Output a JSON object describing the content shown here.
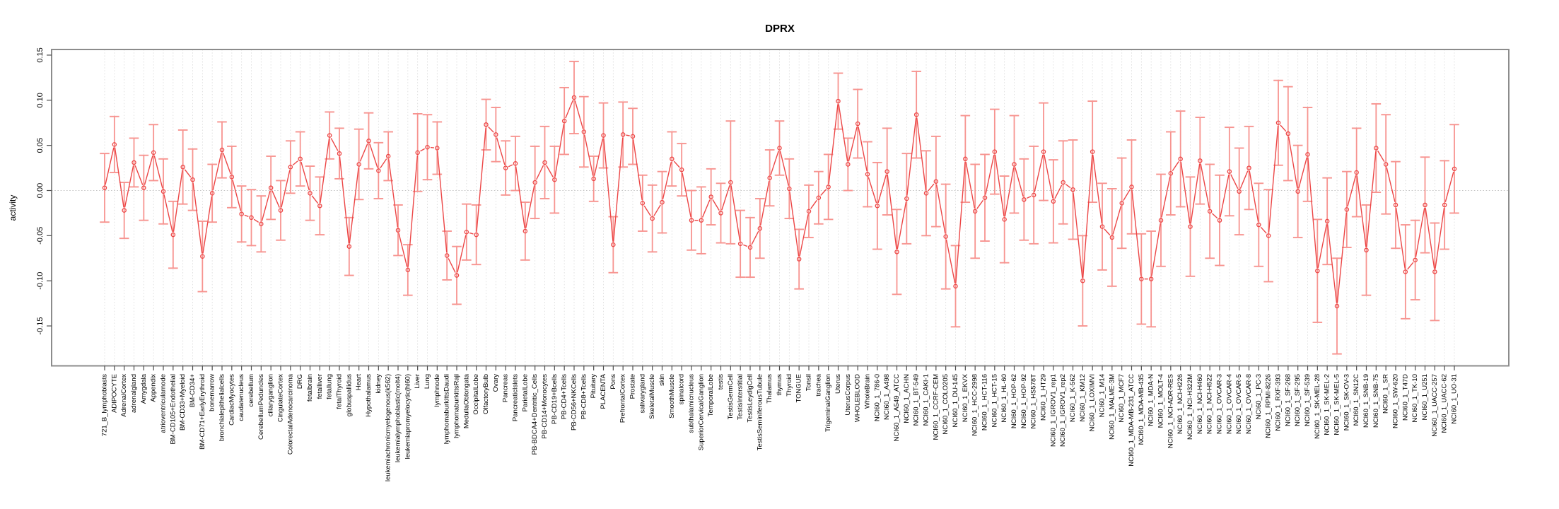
{
  "chart_data": {
    "type": "line",
    "title": "DPRX",
    "xlabel": "",
    "ylabel": "activity",
    "ylim": [
      -0.194,
      0.156
    ],
    "yticks": [
      0.15,
      0.1,
      0.05,
      0.0,
      -0.05,
      -0.1,
      -0.15
    ],
    "ytick_labels": [
      "0.15",
      "0.10",
      "0.05",
      "0.00",
      "-0.05",
      "-0.10",
      "-0.15"
    ],
    "grid": "vertical dotted gridline at every category; horizontal dotted line at zero",
    "legend": "none",
    "marker": "open-circle",
    "error_bars": true,
    "colors": {
      "line": "#ec4646",
      "point": "#ec4646",
      "error_bar": "#f79490",
      "grid": "#d9d9d9",
      "zero_line": "#c4c4c4",
      "frame": "#8c8c8c",
      "tick": "#4d4d4d",
      "text": "#000000"
    },
    "categories": [
      "721_B_lymphoblasts",
      "ADIPOCYTE",
      "AdrenalCortex",
      "adrenalgland",
      "Amygdala",
      "Appendix",
      "atrioventricularnode",
      "BM-CD105+Endothelial",
      "BM-CD33+Myeloid",
      "BM-CD34+",
      "BM-CD71+EarlyErythroid",
      "bonemarrow",
      "bronchialepithelialcells",
      "CardiacMyocytes",
      "caudatenucleus",
      "cerebellum",
      "CerebellumPeduncles",
      "ciliaryganglion",
      "CingulateCortex",
      "ColorectalAdenocarcinoma",
      "DRG",
      "fetalbrain",
      "fetalliver",
      "fetallung",
      "fetalThyroid",
      "globuspallidus",
      "Heart",
      "Hypothalamus",
      "kidney",
      "leukemiachronicmyelogenous(k562)",
      "leukemialymphoblastic(molt4)",
      "leukemiapromyelocytic(hl60)",
      "Liver",
      "Lung",
      "lymphnode",
      "lymphomaburkittsDaudi",
      "lymphomaburkittsRaji",
      "MedullaOblongata",
      "OccipitalLobe",
      "OlfactoryBulb",
      "Ovary",
      "Pancreas",
      "PancreaticIslets",
      "ParietalLobe",
      "PB-BDCA4+Dentritic_Cells",
      "PB-CD14+Monocytes",
      "PB-CD19+Bcells",
      "PB-CD4+Tcells",
      "PB-CD56+NKCells",
      "PB-CD8+Tcells",
      "Pituitary",
      "PLACENTA",
      "Pons",
      "PrefrontalCortex",
      "Prostate",
      "salivarygland",
      "SkeletalMuscle",
      "skin",
      "SmoothMuscle",
      "spinalcord",
      "subthalamicnucleus",
      "SuperiorCervicalGanglion",
      "TemporalLobe",
      "testis",
      "TestisGermCell",
      "TestisInterstitial",
      "TestisLeydigCell",
      "TestisSeminiferousTubule",
      "Thalamus",
      "thymus",
      "Thyroid",
      "TONGUE",
      "Tonsil",
      "trachea",
      "TrigeminalGanglion",
      "Uterus",
      "UterusCorpus",
      "WHOLEBLOOD",
      "WholeBrain",
      "NCI60_1_786-0",
      "NCI60_1_A498",
      "NCI60_1_A549_ATCC",
      "NCI60_1_ACHN",
      "NCI60_1_BT-549",
      "NCI60_1_CAKI-1",
      "NCI60_1_CCRF-CEM",
      "NCI60_1_COLO205",
      "NCI60_1_DU-145",
      "NCI60_1_EKVX",
      "NCI60_1_HCC-2998",
      "NCI60_1_HCT-116",
      "NCI60_1_HCT-15",
      "NCI60_1_HL-60",
      "NCI60_1_HOP-62",
      "NCI60_1_HOP-92",
      "NCI60_1_HS578T",
      "NCI60_1_HT29",
      "NCI60_1_IGROV1_rep1",
      "NCI60_1_IGROV1_rep2",
      "NCI60_1_K-562",
      "NCI60_1_KM12",
      "NCI60_1_LOXIMVI",
      "NCI60_1_M14",
      "NCI60_1_MALME-3M",
      "NCI60_1_MCF7",
      "NCI60_1_MDA-MB-231_ATCC",
      "NCI60_1_MDA-MB-435",
      "NCI60_1_MDA-N",
      "NCI60_1_MOLT-4",
      "NCI60_1_NCI-ADR-RES",
      "NCI60_1_NCI-H226",
      "NCI60_1_NCI-H322M",
      "NCI60_1_NCI-H460",
      "NCI60_1_NCI-H522",
      "NCI60_1_OVCAR-3",
      "NCI60_1_OVCAR-4",
      "NCI60_1_OVCAR-5",
      "NCI60_1_OVCAR-8",
      "NCI60_1_PC-3",
      "NCI60_1_RPMI-8226",
      "NCI60_1_RXF-393",
      "NCI60_1_SF-268",
      "NCI60_1_SF-295",
      "NCI60_1_SF-539",
      "NCI60_1_SK-MEL-28",
      "NCI60_1_SK-MEL-2",
      "NCI60_1_SK-MEL-5",
      "NCI60_1_SK-OV-3",
      "NCI60_1_SN12C",
      "NCI60_1_SNB-19",
      "NCI60_1_SNB-75",
      "NCI60_1_SR",
      "NCI60_1_SW-620",
      "NCI60_1_T47D",
      "NCI60_1_TK-10",
      "NCI60_1_U251",
      "NCI60_1_UACC-257",
      "NCI60_1_UACC-62",
      "NCI60_1_UO-31"
    ],
    "series": [
      {
        "name": "DPRX",
        "values": [
          0.003,
          0.051,
          -0.022,
          0.031,
          0.003,
          0.042,
          -0.001,
          -0.049,
          0.026,
          0.012,
          -0.073,
          -0.003,
          0.045,
          0.015,
          -0.026,
          -0.03,
          -0.037,
          0.003,
          -0.022,
          0.026,
          0.035,
          -0.003,
          -0.017,
          0.061,
          0.041,
          -0.062,
          0.029,
          0.055,
          0.022,
          0.038,
          -0.044,
          -0.088,
          0.042,
          0.048,
          0.047,
          -0.072,
          -0.094,
          -0.046,
          -0.049,
          0.073,
          0.062,
          0.025,
          0.03,
          -0.045,
          0.009,
          0.031,
          0.012,
          0.077,
          0.103,
          0.065,
          0.013,
          0.061,
          -0.06,
          0.062,
          0.06,
          -0.014,
          -0.031,
          -0.013,
          0.035,
          0.023,
          -0.033,
          -0.033,
          -0.007,
          -0.025,
          0.009,
          -0.059,
          -0.063,
          -0.042,
          0.014,
          0.047,
          0.002,
          -0.076,
          -0.023,
          -0.008,
          0.004,
          0.099,
          0.029,
          0.074,
          0.018,
          -0.017,
          0.021,
          -0.068,
          -0.009,
          0.084,
          -0.003,
          0.01,
          -0.051,
          -0.106,
          0.035,
          -0.023,
          -0.008,
          0.043,
          -0.032,
          0.029,
          -0.01,
          -0.005,
          0.043,
          -0.012,
          0.009,
          0.001,
          -0.1,
          0.043,
          -0.04,
          -0.052,
          -0.014,
          0.004,
          -0.098,
          -0.098,
          -0.033,
          0.019,
          0.035,
          -0.04,
          0.033,
          -0.023,
          -0.033,
          0.021,
          -0.001,
          0.025,
          -0.038,
          -0.05,
          0.075,
          0.063,
          -0.001,
          0.04,
          -0.089,
          -0.034,
          -0.128,
          -0.021,
          0.02,
          -0.066,
          0.047,
          0.029,
          -0.016,
          -0.09,
          -0.077,
          -0.016,
          -0.09,
          -0.016,
          0.024
        ],
        "errors": [
          0.038,
          0.031,
          0.031,
          0.027,
          0.036,
          0.031,
          0.036,
          0.037,
          0.041,
          0.034,
          0.039,
          0.032,
          0.031,
          0.034,
          0.031,
          0.031,
          0.031,
          0.035,
          0.033,
          0.029,
          0.03,
          0.03,
          0.032,
          0.026,
          0.028,
          0.032,
          0.039,
          0.031,
          0.031,
          0.027,
          0.028,
          0.028,
          0.043,
          0.036,
          0.029,
          0.027,
          0.032,
          0.031,
          0.033,
          0.028,
          0.03,
          0.03,
          0.03,
          0.032,
          0.04,
          0.04,
          0.037,
          0.037,
          0.04,
          0.039,
          0.025,
          0.036,
          0.031,
          0.036,
          0.031,
          0.031,
          0.037,
          0.034,
          0.03,
          0.029,
          0.033,
          0.037,
          0.031,
          0.033,
          0.068,
          0.037,
          0.033,
          0.033,
          0.031,
          0.03,
          0.033,
          0.033,
          0.029,
          0.029,
          0.036,
          0.031,
          0.029,
          0.038,
          0.036,
          0.048,
          0.048,
          0.047,
          0.05,
          0.048,
          0.047,
          0.05,
          0.058,
          0.045,
          0.048,
          0.052,
          0.048,
          0.047,
          0.048,
          0.054,
          0.045,
          0.054,
          0.054,
          0.046,
          0.046,
          0.055,
          0.05,
          0.056,
          0.048,
          0.054,
          0.05,
          0.052,
          0.05,
          0.053,
          0.051,
          0.046,
          0.053,
          0.055,
          0.048,
          0.052,
          0.05,
          0.049,
          0.048,
          0.046,
          0.046,
          0.051,
          0.047,
          0.052,
          0.051,
          0.052,
          0.057,
          0.048,
          0.053,
          0.042,
          0.049,
          0.05,
          0.049,
          0.055,
          0.048,
          0.052,
          0.044,
          0.053,
          0.054,
          0.049,
          0.049
        ]
      }
    ]
  }
}
